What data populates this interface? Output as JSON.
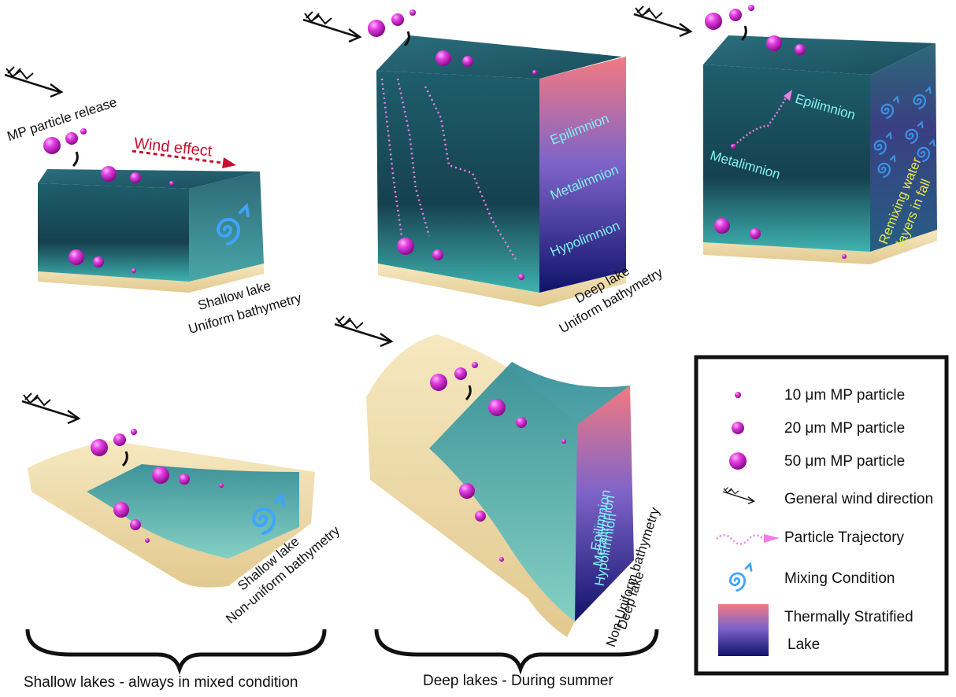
{
  "panels": [
    {
      "release_label": "MP particle release",
      "wind_label": "Wind effect",
      "lake_label": "Shallow lake",
      "bathymetry_label": "Uniform bathymetry"
    },
    {
      "layers": [
        "Epilimnion",
        "Metalimnion",
        "Hypolimnion"
      ],
      "lake_label": "Deep lake",
      "bathymetry_label": "Uniform bathymetry"
    },
    {
      "trajectory_start": "Metalimnion",
      "trajectory_end": "Epilimnion",
      "remix_lines": [
        "Remixing water",
        "layers in fall"
      ]
    },
    {
      "lake_label": "Shallow lake",
      "bathymetry_label": "Non-uniform bathymetry"
    },
    {
      "layers": [
        "Epilimnion",
        "Metalimnion",
        "Hypolimnion"
      ],
      "lake_label": "Deep lake",
      "bathymetry_label": "Non-Uniform bathymetry"
    }
  ],
  "legend": {
    "items": [
      "10 μm MP particle",
      "20 μm MP particle",
      "50 μm MP particle",
      "General wind direction",
      "Particle Trajectory",
      "Mixing Condition"
    ],
    "stratified_lines": [
      "Thermally Stratified",
      "Lake"
    ]
  },
  "group_labels": [
    "Shallow lakes - always in mixed condition",
    "Deep lakes -  During summer"
  ]
}
